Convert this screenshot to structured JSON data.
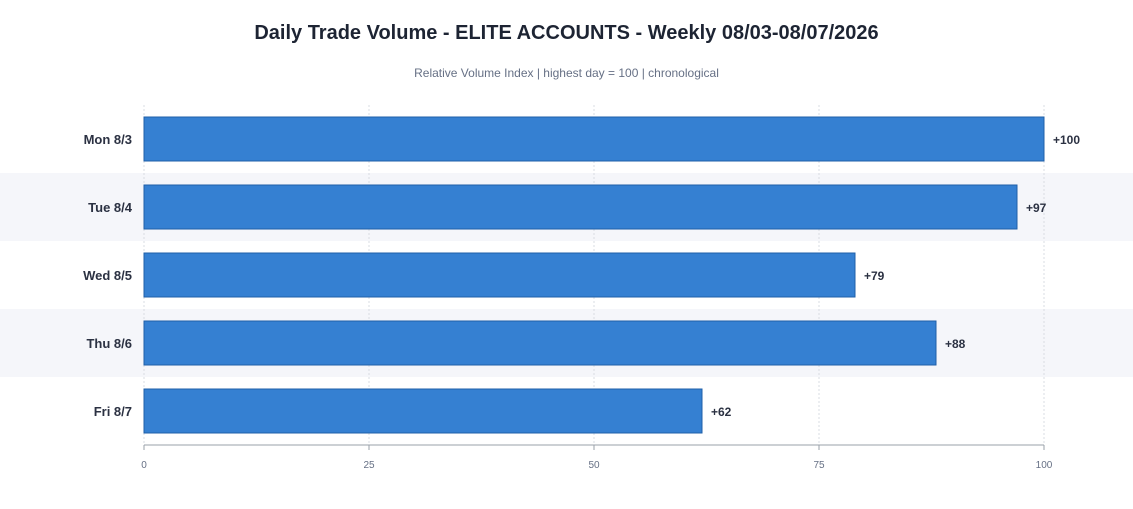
{
  "chart_data": {
    "type": "bar",
    "orientation": "horizontal",
    "title": "Daily Trade Volume - ELITE ACCOUNTS - Weekly 08/03-08/07/2026",
    "subtitle": "Relative Volume Index  |  highest day = 100  |  chronological",
    "categories": [
      "Mon 8/3",
      "Tue 8/4",
      "Wed 8/5",
      "Thu 8/6",
      "Fri 8/7"
    ],
    "values": [
      100,
      97,
      79,
      88,
      62
    ],
    "value_labels": [
      "+100",
      "+97",
      "+79",
      "+88",
      "+62"
    ],
    "xlim": [
      0,
      100
    ],
    "xticks": [
      0,
      25,
      50,
      75,
      100
    ],
    "xtick_labels": [
      "0",
      "25",
      "50",
      "75",
      "100"
    ],
    "xlabel": "",
    "ylabel": "",
    "grid": true,
    "colors": {
      "bar": "#3580d2",
      "bar_border": "#1f5fa8",
      "band": "#f5f6fa",
      "grid": "#d9dce3",
      "axis": "#9aa0aa"
    }
  }
}
